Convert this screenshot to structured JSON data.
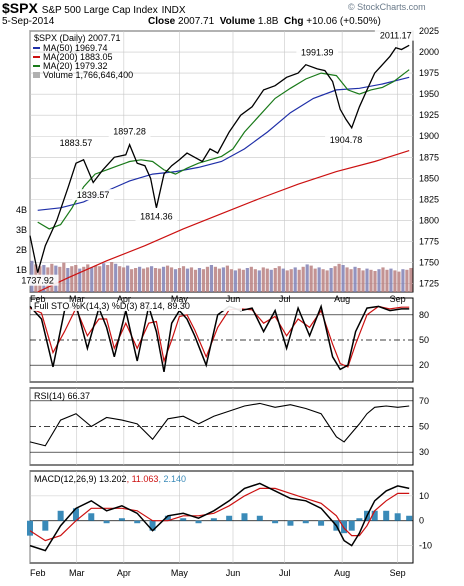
{
  "header": {
    "symbol": "$SPX",
    "name": "S&P 500 Large Cap Index",
    "exchange": "INDX",
    "date": "5-Sep-2014",
    "close_label": "Close",
    "close": "2007.71",
    "volume_label": "Volume",
    "volume": "1.8B",
    "chg_label": "Chg",
    "chg": "+10.06 (+0.50%)",
    "watermark": "© StockCharts.com"
  },
  "colors": {
    "price": "#000000",
    "ma50": "#1f2fa8",
    "ma200": "#cc1111",
    "ma20": "#1a7a1a",
    "volume_up": "#b98080",
    "volume_down": "#8080b4",
    "macd_signal": "#cc1111",
    "macd_hist": "#3a8ab8",
    "stoch_d": "#cc1111",
    "grid": "#c8c8c8"
  },
  "chart_data": [
    {
      "type": "line",
      "panel": "price",
      "title": "$SPX (Daily) 2007.71",
      "legend": [
        {
          "label": "MA(50) 1969.74",
          "color": "#1f2fa8"
        },
        {
          "label": "MA(200) 1883.05",
          "color": "#cc1111"
        },
        {
          "label": "MA(20) 1979.32",
          "color": "#1a7a1a"
        },
        {
          "label": "Volume 1,766,646,400",
          "color": "#b0b0b0"
        }
      ],
      "x_labels": [
        "Feb",
        "Mar",
        "Apr",
        "May",
        "Jun",
        "Jul",
        "Aug",
        "Sep"
      ],
      "x_label_pos": [
        0.0,
        0.122,
        0.245,
        0.39,
        0.53,
        0.665,
        0.815,
        0.96
      ],
      "ylim": [
        1715,
        2025
      ],
      "yticks": [
        1725,
        1750,
        1775,
        1800,
        1825,
        1850,
        1875,
        1900,
        1925,
        1950,
        1975,
        2000,
        2025
      ],
      "volume_ticks": [
        "1B",
        "2B",
        "3B",
        "4B"
      ],
      "annotations": [
        {
          "text": "1737.92",
          "x": 0.02,
          "y": 1737.92,
          "pos": "below"
        },
        {
          "text": "1883.57",
          "x": 0.12,
          "y": 1883.57,
          "pos": "above"
        },
        {
          "text": "1839.57",
          "x": 0.165,
          "y": 1839.57,
          "pos": "below"
        },
        {
          "text": "1897.28",
          "x": 0.26,
          "y": 1897.28,
          "pos": "above"
        },
        {
          "text": "1814.36",
          "x": 0.33,
          "y": 1814.36,
          "pos": "below"
        },
        {
          "text": "1991.39",
          "x": 0.75,
          "y": 1991.39,
          "pos": "above"
        },
        {
          "text": "1904.78",
          "x": 0.825,
          "y": 1904.78,
          "pos": "below"
        },
        {
          "text": "2011.17",
          "x": 0.955,
          "y": 2011.17,
          "pos": "above"
        }
      ],
      "series": [
        {
          "name": "$SPX",
          "x": [
            0,
            0.02,
            0.04,
            0.07,
            0.1,
            0.12,
            0.14,
            0.165,
            0.19,
            0.22,
            0.25,
            0.26,
            0.28,
            0.3,
            0.315,
            0.33,
            0.35,
            0.37,
            0.39,
            0.41,
            0.43,
            0.45,
            0.47,
            0.49,
            0.52,
            0.55,
            0.58,
            0.61,
            0.64,
            0.67,
            0.7,
            0.72,
            0.75,
            0.77,
            0.79,
            0.81,
            0.825,
            0.84,
            0.86,
            0.88,
            0.9,
            0.92,
            0.94,
            0.955,
            0.97,
            0.99
          ],
          "values": [
            1782,
            1738,
            1770,
            1800,
            1840,
            1868,
            1872,
            1845,
            1860,
            1875,
            1878,
            1890,
            1868,
            1865,
            1850,
            1815,
            1855,
            1865,
            1872,
            1880,
            1875,
            1870,
            1885,
            1880,
            1905,
            1925,
            1935,
            1955,
            1960,
            1970,
            1975,
            1985,
            1980,
            1978,
            1965,
            1932,
            1920,
            1910,
            1935,
            1955,
            1975,
            1985,
            1995,
            2005,
            2003,
            2008
          ]
        },
        {
          "name": "MA(20)",
          "x": [
            0.02,
            0.05,
            0.08,
            0.11,
            0.14,
            0.17,
            0.2,
            0.23,
            0.26,
            0.29,
            0.32,
            0.35,
            0.38,
            0.41,
            0.44,
            0.47,
            0.5,
            0.53,
            0.56,
            0.6,
            0.64,
            0.68,
            0.72,
            0.76,
            0.8,
            0.83,
            0.86,
            0.89,
            0.92,
            0.95,
            0.99
          ],
          "values": [
            1798,
            1790,
            1795,
            1815,
            1840,
            1855,
            1860,
            1865,
            1870,
            1872,
            1870,
            1860,
            1855,
            1862,
            1868,
            1872,
            1876,
            1885,
            1905,
            1925,
            1945,
            1957,
            1968,
            1975,
            1972,
            1955,
            1950,
            1955,
            1958,
            1965,
            1979
          ]
        },
        {
          "name": "MA(50)",
          "x": [
            0.02,
            0.08,
            0.14,
            0.2,
            0.26,
            0.32,
            0.38,
            0.44,
            0.5,
            0.56,
            0.62,
            0.68,
            0.74,
            0.8,
            0.86,
            0.92,
            0.99
          ],
          "values": [
            1812,
            1815,
            1822,
            1835,
            1847,
            1855,
            1858,
            1863,
            1870,
            1885,
            1905,
            1928,
            1945,
            1955,
            1957,
            1962,
            1970
          ]
        },
        {
          "name": "MA(200)",
          "x": [
            0.02,
            0.1,
            0.2,
            0.3,
            0.4,
            0.5,
            0.6,
            0.7,
            0.8,
            0.9,
            0.99
          ],
          "values": [
            1715,
            1732,
            1752,
            1770,
            1790,
            1808,
            1826,
            1843,
            1858,
            1870,
            1883
          ]
        }
      ],
      "volume_bars_relative": [
        0.52,
        0.46,
        0.43,
        0.45,
        0.41,
        0.47,
        0.44,
        0.42,
        0.49,
        0.4,
        0.43,
        0.45,
        0.39,
        0.42,
        0.46,
        0.41,
        0.44,
        0.43,
        0.48,
        0.45,
        0.5,
        0.47,
        0.43,
        0.41,
        0.44,
        0.38,
        0.4,
        0.42,
        0.39,
        0.41,
        0.43,
        0.4,
        0.39,
        0.42,
        0.44,
        0.41,
        0.38,
        0.4,
        0.43,
        0.39,
        0.41,
        0.37,
        0.4,
        0.38,
        0.42,
        0.45,
        0.42,
        0.39,
        0.41,
        0.44,
        0.38,
        0.36,
        0.39,
        0.37,
        0.4,
        0.42,
        0.38,
        0.36,
        0.41,
        0.39,
        0.37,
        0.4,
        0.43,
        0.39,
        0.36,
        0.38,
        0.41,
        0.37,
        0.42,
        0.46,
        0.44,
        0.39,
        0.41,
        0.38,
        0.36,
        0.4,
        0.43,
        0.47,
        0.45,
        0.41,
        0.38,
        0.42,
        0.4,
        0.36,
        0.39,
        0.37,
        0.35,
        0.38,
        0.41,
        0.37,
        0.39,
        0.36,
        0.34,
        0.38,
        0.37,
        0.4
      ]
    },
    {
      "type": "line",
      "panel": "stochastic",
      "title": "Full STO %K(14,3) %D(3) 87.14, 89.30",
      "ylim": [
        0,
        100
      ],
      "yticks": [
        20,
        50,
        80
      ],
      "series": [
        {
          "name": "%K",
          "x": [
            0,
            0.03,
            0.06,
            0.09,
            0.12,
            0.15,
            0.18,
            0.2,
            0.22,
            0.25,
            0.28,
            0.31,
            0.33,
            0.35,
            0.37,
            0.39,
            0.41,
            0.43,
            0.46,
            0.49,
            0.52,
            0.55,
            0.58,
            0.61,
            0.64,
            0.67,
            0.7,
            0.73,
            0.76,
            0.79,
            0.81,
            0.83,
            0.85,
            0.88,
            0.91,
            0.94,
            0.97,
            0.99
          ],
          "values": [
            90,
            75,
            18,
            85,
            92,
            40,
            88,
            65,
            30,
            85,
            25,
            90,
            60,
            12,
            70,
            85,
            75,
            55,
            20,
            80,
            90,
            85,
            88,
            60,
            85,
            40,
            88,
            55,
            90,
            30,
            15,
            20,
            60,
            88,
            90,
            85,
            87,
            87
          ]
        },
        {
          "name": "%D",
          "x": [
            0,
            0.03,
            0.06,
            0.09,
            0.12,
            0.15,
            0.18,
            0.2,
            0.22,
            0.25,
            0.28,
            0.31,
            0.33,
            0.35,
            0.37,
            0.39,
            0.41,
            0.43,
            0.46,
            0.49,
            0.52,
            0.55,
            0.58,
            0.61,
            0.64,
            0.67,
            0.7,
            0.73,
            0.76,
            0.79,
            0.81,
            0.83,
            0.85,
            0.88,
            0.91,
            0.94,
            0.97,
            0.99
          ],
          "values": [
            88,
            82,
            35,
            60,
            88,
            55,
            75,
            75,
            40,
            70,
            40,
            70,
            72,
            25,
            50,
            78,
            80,
            62,
            30,
            65,
            86,
            87,
            86,
            70,
            78,
            55,
            75,
            65,
            85,
            45,
            22,
            18,
            45,
            80,
            90,
            87,
            89,
            89
          ]
        }
      ]
    },
    {
      "type": "line",
      "panel": "rsi",
      "title": "RSI(14) 66.37",
      "ylim": [
        20,
        80
      ],
      "yticks": [
        30,
        50,
        70
      ],
      "series": [
        {
          "name": "RSI(14)",
          "x": [
            0,
            0.04,
            0.08,
            0.12,
            0.16,
            0.2,
            0.24,
            0.28,
            0.32,
            0.36,
            0.4,
            0.44,
            0.48,
            0.52,
            0.56,
            0.6,
            0.64,
            0.68,
            0.72,
            0.76,
            0.8,
            0.82,
            0.84,
            0.86,
            0.88,
            0.9,
            0.93,
            0.96,
            0.99
          ],
          "values": [
            38,
            35,
            55,
            60,
            50,
            57,
            55,
            52,
            40,
            56,
            58,
            52,
            58,
            62,
            66,
            68,
            65,
            67,
            64,
            60,
            42,
            38,
            45,
            52,
            60,
            65,
            66,
            65,
            66
          ]
        }
      ]
    },
    {
      "type": "line",
      "panel": "macd",
      "title": "MACD(12,26,9) 13.202, 11.063, 2.140",
      "legend": [
        {
          "label": "MACD(12,26,9) 13.202",
          "color": "#000000"
        },
        {
          "label": "11.063",
          "color": "#cc1111"
        },
        {
          "label": "2.140",
          "color": "#3a8ab8"
        }
      ],
      "ylim": [
        -17,
        20
      ],
      "yticks": [
        -10,
        0,
        10
      ],
      "series": [
        {
          "name": "MACD",
          "x": [
            0,
            0.04,
            0.08,
            0.12,
            0.16,
            0.2,
            0.24,
            0.28,
            0.32,
            0.36,
            0.4,
            0.44,
            0.48,
            0.52,
            0.56,
            0.6,
            0.64,
            0.68,
            0.72,
            0.76,
            0.8,
            0.82,
            0.84,
            0.86,
            0.88,
            0.9,
            0.93,
            0.96,
            0.99
          ],
          "values": [
            -10,
            -12,
            -2,
            5,
            8,
            4,
            6,
            3,
            -4,
            2,
            3,
            1,
            4,
            8,
            13,
            15,
            12,
            9,
            8,
            5,
            -2,
            -8,
            -10,
            -5,
            2,
            8,
            12,
            14,
            13
          ]
        },
        {
          "name": "Signal",
          "x": [
            0,
            0.04,
            0.08,
            0.12,
            0.16,
            0.2,
            0.24,
            0.28,
            0.32,
            0.36,
            0.4,
            0.44,
            0.48,
            0.52,
            0.56,
            0.6,
            0.64,
            0.68,
            0.72,
            0.76,
            0.8,
            0.82,
            0.84,
            0.86,
            0.88,
            0.9,
            0.93,
            0.96,
            0.99
          ],
          "values": [
            -4,
            -8,
            -6,
            0,
            5,
            5,
            5,
            4,
            0,
            0,
            2,
            2,
            3,
            6,
            10,
            13,
            13,
            11,
            9,
            7,
            2,
            -3,
            -6,
            -6,
            -2,
            4,
            8,
            11,
            11
          ]
        },
        {
          "name": "Histogram",
          "x": [
            0,
            0.04,
            0.08,
            0.12,
            0.16,
            0.2,
            0.24,
            0.28,
            0.32,
            0.36,
            0.4,
            0.44,
            0.48,
            0.52,
            0.56,
            0.6,
            0.64,
            0.68,
            0.72,
            0.76,
            0.8,
            0.82,
            0.84,
            0.86,
            0.88,
            0.9,
            0.93,
            0.96,
            0.99
          ],
          "values": [
            -6,
            -4,
            4,
            5,
            3,
            -1,
            1,
            -1,
            -4,
            2,
            1,
            -1,
            1,
            2,
            3,
            2,
            -1,
            -2,
            -1,
            -2,
            -4,
            -5,
            -4,
            1,
            4,
            4,
            4,
            3,
            2
          ]
        }
      ]
    }
  ]
}
